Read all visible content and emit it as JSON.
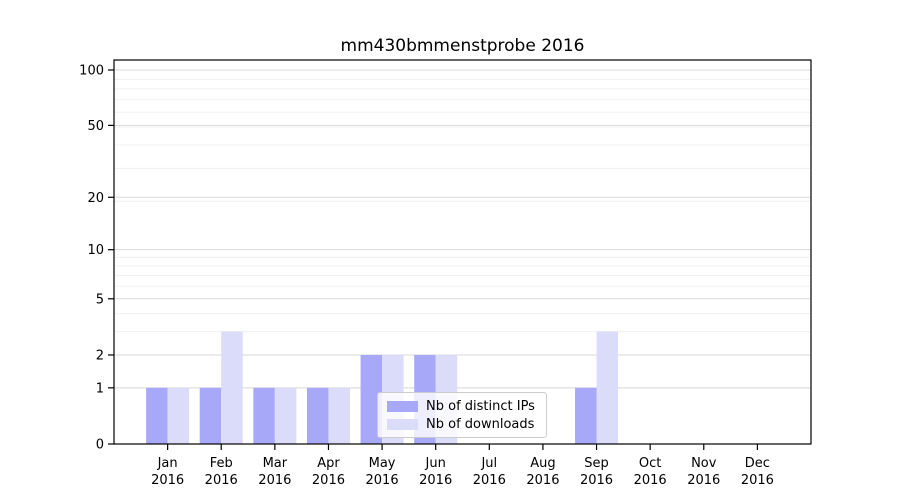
{
  "title": "mm430bmmenstprobe 2016",
  "chart_data": {
    "type": "bar",
    "title": "mm430bmmenstprobe 2016",
    "categories": [
      "Jan 2016",
      "Feb 2016",
      "Mar 2016",
      "Apr 2016",
      "May 2016",
      "Jun 2016",
      "Jul 2016",
      "Aug 2016",
      "Sep 2016",
      "Oct 2016",
      "Nov 2016",
      "Dec 2016"
    ],
    "x_months": [
      "Jan",
      "Feb",
      "Mar",
      "Apr",
      "May",
      "Jun",
      "Jul",
      "Aug",
      "Sep",
      "Oct",
      "Nov",
      "Dec"
    ],
    "x_year": "2016",
    "series": [
      {
        "name": "Nb of distinct IPs",
        "color": "#a8a8f8",
        "values": [
          1,
          1,
          1,
          1,
          2,
          2,
          0,
          0,
          1,
          0,
          0,
          0
        ]
      },
      {
        "name": "Nb of downloads",
        "color": "#dbdbfa",
        "values": [
          1,
          3,
          1,
          1,
          2,
          2,
          0,
          0,
          3,
          0,
          0,
          0
        ]
      }
    ],
    "yscale": "log1p",
    "yticks": [
      0,
      1,
      2,
      5,
      10,
      20,
      50,
      100
    ],
    "minor_gridlines": [
      3,
      4,
      6,
      7,
      8,
      9,
      19,
      29,
      39,
      49,
      59,
      69,
      79,
      89
    ],
    "ylim": [
      0,
      113
    ],
    "grid": true,
    "legend_position": "lower center"
  },
  "colors": {
    "major_grid": "#d8d8d8",
    "minor_grid": "#f0f0f0",
    "axis": "#000000",
    "tick_text": "#000000",
    "legend_border": "#cccccc"
  }
}
